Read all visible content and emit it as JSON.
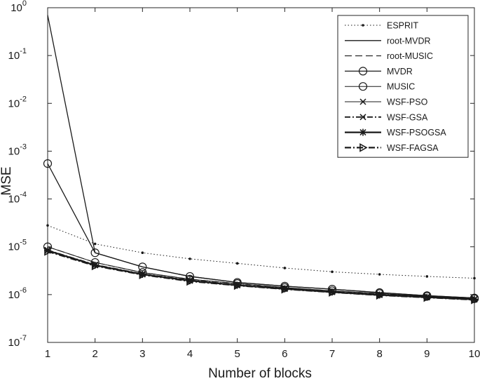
{
  "chart_data": {
    "type": "line",
    "xlabel": "Number of blocks",
    "ylabel": "MSE",
    "y_scale": "log",
    "x_range": [
      1,
      10
    ],
    "y_range": [
      1e-07,
      1
    ],
    "x_ticks": [
      "1",
      "2",
      "3",
      "4",
      "5",
      "6",
      "7",
      "8",
      "9",
      "10"
    ],
    "y_ticks": [
      {
        "base": "10",
        "exp": "0"
      },
      {
        "base": "10",
        "exp": "-1"
      },
      {
        "base": "10",
        "exp": "-2"
      },
      {
        "base": "10",
        "exp": "-3"
      },
      {
        "base": "10",
        "exp": "-4"
      },
      {
        "base": "10",
        "exp": "-5"
      },
      {
        "base": "10",
        "exp": "-6"
      },
      {
        "base": "10",
        "exp": "-7"
      }
    ],
    "grid": false,
    "legend_position": "top-right",
    "x": [
      1,
      2,
      3,
      4,
      5,
      6,
      7,
      8,
      9,
      10
    ],
    "series": [
      {
        "name": "ESPRIT",
        "line": "dotted",
        "marker": "dot",
        "values": [
          2.8e-05,
          1.15e-05,
          7.5e-06,
          5.6e-06,
          4.5e-06,
          3.6e-06,
          3e-06,
          2.65e-06,
          2.4e-06,
          2.2e-06
        ]
      },
      {
        "name": "root-MVDR",
        "line": "solid",
        "marker": "none",
        "values": [
          0.7,
          7.5e-06,
          3.8e-06,
          2.4e-06,
          1.8e-06,
          1.5e-06,
          1.3e-06,
          1.1e-06,
          9.5e-07,
          8.5e-07
        ]
      },
      {
        "name": "root-MUSIC",
        "line": "dashed",
        "marker": "none",
        "values": [
          1e-05,
          4.7e-06,
          2.9e-06,
          2.1e-06,
          1.7e-06,
          1.4e-06,
          1.2e-06,
          1.05e-06,
          9.2e-07,
          8.2e-07
        ]
      },
      {
        "name": "MVDR",
        "line": "solid",
        "marker": "circle",
        "values": [
          0.00055,
          7.5e-06,
          3.8e-06,
          2.4e-06,
          1.8e-06,
          1.5e-06,
          1.3e-06,
          1.1e-06,
          9.5e-07,
          8.5e-07
        ]
      },
      {
        "name": "MUSIC",
        "line": "solid-thin",
        "marker": "circle",
        "values": [
          1e-05,
          4.7e-06,
          2.9e-06,
          2.1e-06,
          1.7e-06,
          1.4e-06,
          1.2e-06,
          1.05e-06,
          9.2e-07,
          8.2e-07
        ]
      },
      {
        "name": "WSF-PSO",
        "line": "solid-thin",
        "marker": "x",
        "values": [
          8.5e-06,
          4.2e-06,
          2.7e-06,
          2e-06,
          1.6e-06,
          1.35e-06,
          1.15e-06,
          1e-06,
          9e-07,
          8e-07
        ]
      },
      {
        "name": "WSF-GSA",
        "line": "dashdot",
        "marker": "x",
        "values": [
          8.5e-06,
          4.2e-06,
          2.7e-06,
          2e-06,
          1.6e-06,
          1.35e-06,
          1.15e-06,
          1e-06,
          9e-07,
          8e-07
        ]
      },
      {
        "name": "WSF-PSOGSA",
        "line": "solid-thick",
        "marker": "star",
        "values": [
          8.3e-06,
          4.1e-06,
          2.65e-06,
          1.95e-06,
          1.57e-06,
          1.32e-06,
          1.13e-06,
          9.8e-07,
          8.8e-07,
          7.9e-07
        ]
      },
      {
        "name": "WSF-FAGSA",
        "line": "dashdot-thick",
        "marker": "triangle",
        "values": [
          8e-06,
          4e-06,
          2.6e-06,
          1.9e-06,
          1.55e-06,
          1.3e-06,
          1.12e-06,
          9.7e-07,
          8.7e-07,
          7.8e-07
        ]
      }
    ]
  }
}
